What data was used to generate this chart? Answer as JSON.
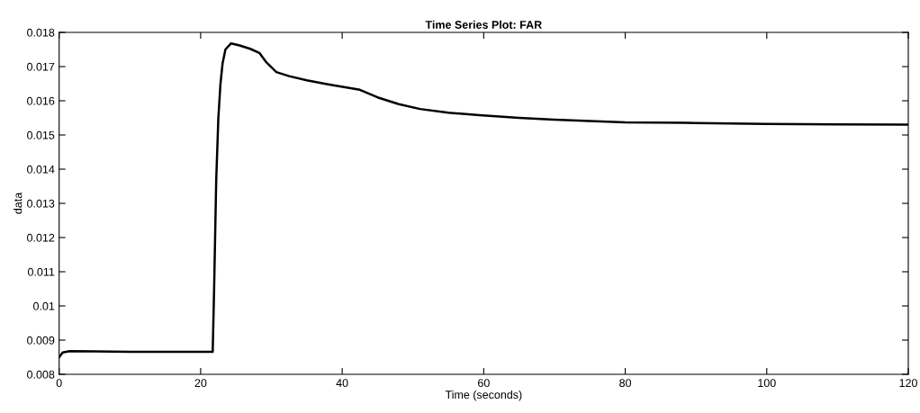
{
  "chart_data": {
    "type": "line",
    "title": "Time Series Plot: FAR",
    "xlabel": "Time (seconds)",
    "ylabel": "data",
    "series": [
      {
        "color": "#000000",
        "x": [
          0,
          0.5,
          1.5,
          5,
          10,
          15,
          21.7,
          21.9,
          22.2,
          22.5,
          22.8,
          23.1,
          23.5,
          24.3,
          25.5,
          27,
          28.3,
          29.3,
          30.7,
          32.5,
          35,
          38,
          42.5,
          45,
          48,
          51,
          55,
          59.4,
          65,
          70,
          80,
          90,
          100,
          110,
          120
        ],
        "values": [
          0.0085,
          0.00864,
          0.00868,
          0.00867,
          0.00866,
          0.00866,
          0.00866,
          0.0105,
          0.0137,
          0.0155,
          0.0165,
          0.0171,
          0.0175,
          0.01768,
          0.01762,
          0.01752,
          0.0174,
          0.01712,
          0.01684,
          0.01672,
          0.0166,
          0.01648,
          0.01632,
          0.0161,
          0.0159,
          0.01576,
          0.01565,
          0.01558,
          0.0155,
          0.01545,
          0.01537,
          0.01535,
          0.01532,
          0.01531,
          0.0153
        ]
      }
    ],
    "xlim": [
      0,
      120
    ],
    "ylim": [
      0.008,
      0.018
    ],
    "xticks": [
      0,
      20,
      40,
      60,
      80,
      100,
      120
    ],
    "yticks": [
      0.008,
      0.009,
      0.01,
      0.011,
      0.012,
      0.013,
      0.014,
      0.015,
      0.016,
      0.017,
      0.018
    ],
    "grid": false,
    "marker": "none",
    "line_style": "solid"
  }
}
